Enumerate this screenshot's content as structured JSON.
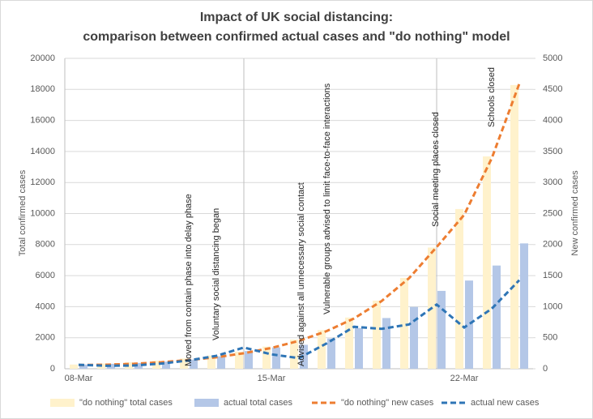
{
  "chart_data": {
    "type": "bar",
    "title": [
      "Impact of UK social distancing:",
      "comparison between confirmed actual cases and \"do nothing\" model"
    ],
    "y_label": "Total confirmed cases",
    "y2_label": "New confirmed cases",
    "categories": [
      "08-Mar",
      null,
      null,
      null,
      null,
      null,
      null,
      "15-Mar",
      null,
      null,
      null,
      null,
      null,
      null,
      "22-Mar",
      null,
      null
    ],
    "ylim": [
      0,
      20000
    ],
    "yticks": [
      0,
      2000,
      4000,
      6000,
      8000,
      10000,
      12000,
      14000,
      16000,
      18000,
      20000
    ],
    "y2lim": [
      0,
      5000
    ],
    "y2ticks": [
      0,
      500,
      1000,
      1500,
      2000,
      2500,
      3000,
      3500,
      4000,
      4500,
      5000
    ],
    "grid": true,
    "legend": "bottom",
    "series": [
      {
        "name": "\"do nothing\" total cases",
        "type": "bar",
        "color": "#fff2cc",
        "values": [
          273,
          340,
          420,
          520,
          660,
          850,
          1100,
          1430,
          1880,
          2490,
          3300,
          4390,
          5850,
          7810,
          10290,
          13680,
          18280
        ]
      },
      {
        "name": "actual total cases",
        "type": "bar",
        "color": "#b4c7e7",
        "values": [
          273,
          321,
          373,
          456,
          590,
          798,
          1140,
          1372,
          1543,
          1950,
          2626,
          3269,
          3983,
          5018,
          5683,
          6650,
          8077
        ]
      },
      {
        "name": "\"do nothing\" new cases",
        "type": "line",
        "axis": "y2",
        "dashed": true,
        "color": "#ed7d31",
        "values": [
          60,
          65,
          80,
          105,
          140,
          185,
          250,
          335,
          450,
          605,
          810,
          1090,
          1460,
          1960,
          2480,
          3390,
          4590
        ]
      },
      {
        "name": "actual new cases",
        "type": "line",
        "axis": "y2",
        "dashed": true,
        "color": "#2e75b6",
        "values": [
          64,
          48,
          52,
          83,
          134,
          208,
          342,
          232,
          171,
          407,
          676,
          643,
          714,
          1035,
          665,
          967,
          1427
        ]
      }
    ],
    "annotations": [
      "Moved from contain phase into delay phase",
      "Voluntary social distancing began",
      "Advised against all unnecessary social contact",
      "Vulnerable groups advised to limit face-to-face interactions",
      "Social meeting places closed",
      "Schools closed"
    ]
  }
}
